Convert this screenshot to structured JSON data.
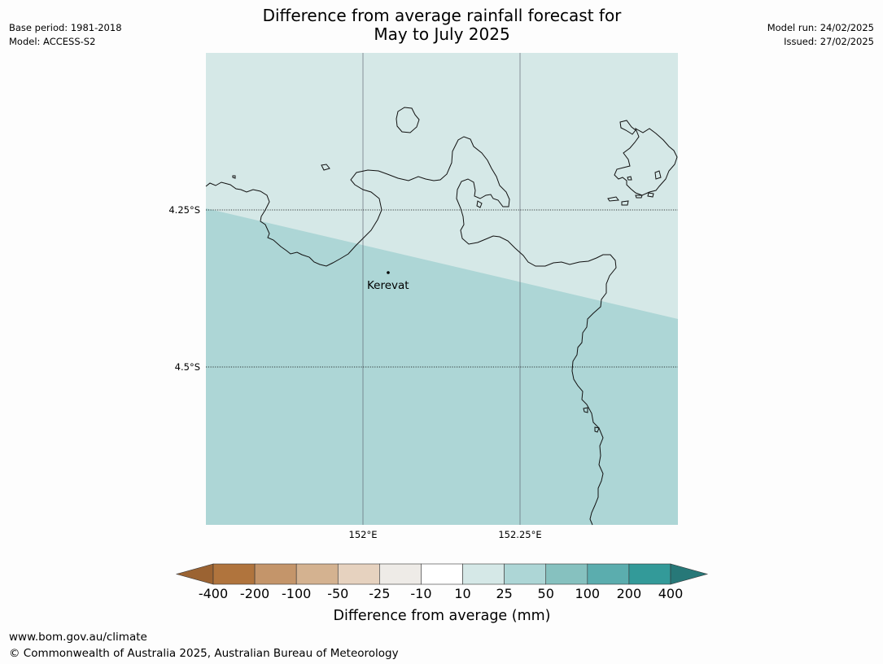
{
  "title_line1": "Difference from average rainfall forecast for",
  "title_line2": "May to July 2025",
  "base_period": "Base period: 1981-2018",
  "model": "Model: ACCESS-S2",
  "model_run": "Model run: 24/02/2025",
  "issued": "Issued: 27/02/2025",
  "map": {
    "lat_labels": [
      "4.25°S",
      "4.5°S"
    ],
    "lon_labels": [
      "152°E",
      "152.25°E"
    ],
    "place": "Kerevat",
    "regions": [
      {
        "category": "10 to 25",
        "color": "#d5e8e7",
        "position": "northeast"
      },
      {
        "category": "25 to 50",
        "color": "#add6d6",
        "position": "southwest"
      }
    ]
  },
  "colorbar": {
    "title": "Difference from average (mm)",
    "ticks": [
      "-400",
      "-200",
      "-100",
      "-50",
      "-25",
      "-10",
      "10",
      "25",
      "50",
      "100",
      "200",
      "400"
    ],
    "colors": [
      "#9b6332",
      "#b0743d",
      "#c4956a",
      "#d4b290",
      "#e6d2bf",
      "#eeebe7",
      "#ffffff",
      "#d5e8e7",
      "#add6d6",
      "#86c1bf",
      "#5badae",
      "#339a99",
      "#277878"
    ]
  },
  "footer": {
    "url": "www.bom.gov.au/climate",
    "copyright": "© Commonwealth of Australia 2025, Australian Bureau of Meteorology"
  }
}
